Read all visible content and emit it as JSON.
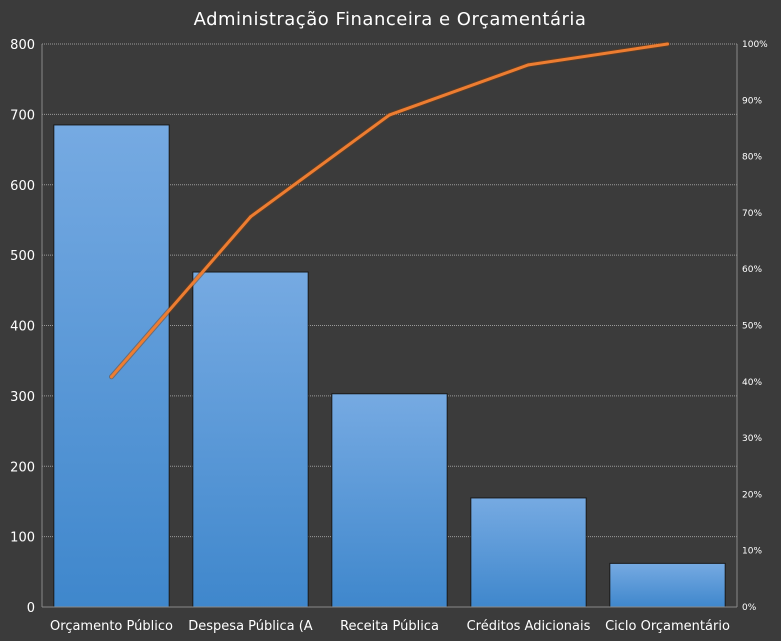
{
  "chart_data": {
    "type": "bar",
    "title": "Administração Financeira e Orçamentária",
    "categories": [
      "Orçamento Público",
      "Despesa Pública (A",
      "Receita Pública",
      "Créditos Adicionais",
      "Ciclo Orçamentário"
    ],
    "series": [
      {
        "type": "bar",
        "values": [
          685,
          476,
          303,
          155,
          62
        ],
        "color": "#5b9bd5"
      },
      {
        "type": "line",
        "axis": "right",
        "values": [
          40.9,
          69.3,
          87.4,
          96.3,
          100
        ],
        "color": "#ed7d31"
      }
    ],
    "ylim": [
      0,
      800
    ],
    "yticks": [
      "0",
      "100",
      "200",
      "300",
      "400",
      "500",
      "600",
      "700",
      "800"
    ],
    "y2lim": [
      0,
      100
    ],
    "y2ticks": [
      "0%",
      "10%",
      "20%",
      "30%",
      "40%",
      "50%",
      "60%",
      "70%",
      "80%",
      "90%",
      "100%"
    ],
    "grid": true,
    "legend": "none",
    "colors": {
      "background": "#3b3b3b",
      "text": "#ffffff",
      "grid": "#9a9a9a"
    }
  }
}
